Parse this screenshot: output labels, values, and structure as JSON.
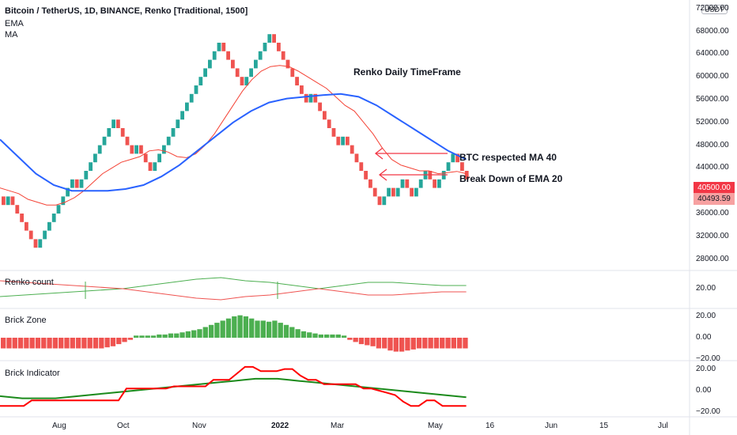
{
  "header": {
    "symbol_line": "Bitcoin / TetherUS, 1D, BINANCE, Renko [Traditional, 1500]",
    "legend": [
      "EMA",
      "MA"
    ]
  },
  "annotations": {
    "timeframe": "Renko Daily TimeFrame",
    "arrow1": "BTC respected MA 40",
    "arrow2": "Break Down of EMA 20"
  },
  "price_axis": {
    "currency": "USDT",
    "ticks": [
      "72000.00",
      "68000.00",
      "64000.00",
      "60000.00",
      "56000.00",
      "52000.00",
      "48000.00",
      "44000.00",
      "36000.00",
      "32000.00",
      "28000.00"
    ],
    "last_price": "40500.00",
    "ema_value": "40493.59"
  },
  "time_axis": [
    "Aug",
    "Oct",
    "Nov",
    "2022",
    "Mar",
    "May",
    "16",
    "Jun",
    "15",
    "Jul"
  ],
  "panes": {
    "renko_count": {
      "title": "Renko count",
      "ticks": [
        "20.00"
      ]
    },
    "brick_zone": {
      "title": "Brick Zone",
      "ticks": [
        "20.00",
        "0.00",
        "−20.00"
      ]
    },
    "brick_indicator": {
      "title": "Brick Indicator",
      "ticks": [
        "20.00",
        "0.00",
        "−20.00"
      ]
    }
  },
  "colors": {
    "up": "#26a69a",
    "up_green": "#4caf50",
    "down": "#ef5350",
    "ema": "#f44336",
    "ma": "#2962ff",
    "indicator_green": "#1b8a1b",
    "indicator_red": "#ff0000"
  },
  "chart_data": {
    "type": "renko",
    "brick_size": 1500,
    "price_range": [
      26000,
      73500
    ],
    "bricks": [
      {
        "open": 39000,
        "close": 37500
      },
      {
        "open": 37500,
        "close": 39000
      },
      {
        "open": 39000,
        "close": 37500
      },
      {
        "open": 37500,
        "close": 36000
      },
      {
        "open": 36000,
        "close": 34500
      },
      {
        "open": 34500,
        "close": 33000
      },
      {
        "open": 33000,
        "close": 31500
      },
      {
        "open": 31500,
        "close": 30000
      },
      {
        "open": 30000,
        "close": 31500
      },
      {
        "open": 31500,
        "close": 33000
      },
      {
        "open": 33000,
        "close": 34500
      },
      {
        "open": 34500,
        "close": 36000
      },
      {
        "open": 36000,
        "close": 37500
      },
      {
        "open": 37500,
        "close": 39000
      },
      {
        "open": 39000,
        "close": 40500
      },
      {
        "open": 40500,
        "close": 42000
      },
      {
        "open": 42000,
        "close": 40500
      },
      {
        "open": 40500,
        "close": 42000
      },
      {
        "open": 42000,
        "close": 43500
      },
      {
        "open": 43500,
        "close": 45000
      },
      {
        "open": 45000,
        "close": 46500
      },
      {
        "open": 46500,
        "close": 48000
      },
      {
        "open": 48000,
        "close": 49500
      },
      {
        "open": 49500,
        "close": 51000
      },
      {
        "open": 51000,
        "close": 52500
      },
      {
        "open": 52500,
        "close": 51000
      },
      {
        "open": 51000,
        "close": 49500
      },
      {
        "open": 49500,
        "close": 48000
      },
      {
        "open": 48000,
        "close": 46500
      },
      {
        "open": 46500,
        "close": 48000
      },
      {
        "open": 48000,
        "close": 46500
      },
      {
        "open": 46500,
        "close": 45000
      },
      {
        "open": 45000,
        "close": 43500
      },
      {
        "open": 43500,
        "close": 45000
      },
      {
        "open": 45000,
        "close": 46500
      },
      {
        "open": 46500,
        "close": 48000
      },
      {
        "open": 48000,
        "close": 49500
      },
      {
        "open": 49500,
        "close": 51000
      },
      {
        "open": 51000,
        "close": 52500
      },
      {
        "open": 52500,
        "close": 54000
      },
      {
        "open": 54000,
        "close": 55500
      },
      {
        "open": 55500,
        "close": 57000
      },
      {
        "open": 57000,
        "close": 58500
      },
      {
        "open": 58500,
        "close": 60000
      },
      {
        "open": 60000,
        "close": 61500
      },
      {
        "open": 61500,
        "close": 63000
      },
      {
        "open": 63000,
        "close": 64500
      },
      {
        "open": 64500,
        "close": 66000
      },
      {
        "open": 66000,
        "close": 64500
      },
      {
        "open": 64500,
        "close": 63000
      },
      {
        "open": 63000,
        "close": 61500
      },
      {
        "open": 61500,
        "close": 60000
      },
      {
        "open": 60000,
        "close": 58500
      },
      {
        "open": 58500,
        "close": 60000
      },
      {
        "open": 60000,
        "close": 61500
      },
      {
        "open": 61500,
        "close": 63000
      },
      {
        "open": 63000,
        "close": 64500
      },
      {
        "open": 64500,
        "close": 66000
      },
      {
        "open": 66000,
        "close": 67500
      },
      {
        "open": 67500,
        "close": 66000
      },
      {
        "open": 66000,
        "close": 64500
      },
      {
        "open": 64500,
        "close": 63000
      },
      {
        "open": 63000,
        "close": 61500
      },
      {
        "open": 61500,
        "close": 60000
      },
      {
        "open": 60000,
        "close": 58500
      },
      {
        "open": 58500,
        "close": 57000
      },
      {
        "open": 57000,
        "close": 55500
      },
      {
        "open": 55500,
        "close": 57000
      },
      {
        "open": 57000,
        "close": 55500
      },
      {
        "open": 55500,
        "close": 54000
      },
      {
        "open": 54000,
        "close": 52500
      },
      {
        "open": 52500,
        "close": 51000
      },
      {
        "open": 51000,
        "close": 49500
      },
      {
        "open": 49500,
        "close": 48000
      },
      {
        "open": 48000,
        "close": 49500
      },
      {
        "open": 49500,
        "close": 48000
      },
      {
        "open": 48000,
        "close": 46500
      },
      {
        "open": 46500,
        "close": 45000
      },
      {
        "open": 45000,
        "close": 43500
      },
      {
        "open": 43500,
        "close": 42000
      },
      {
        "open": 42000,
        "close": 40500
      },
      {
        "open": 40500,
        "close": 39000
      },
      {
        "open": 39000,
        "close": 37500
      },
      {
        "open": 37500,
        "close": 39000
      },
      {
        "open": 39000,
        "close": 40500
      },
      {
        "open": 40500,
        "close": 39000
      },
      {
        "open": 39000,
        "close": 40500
      },
      {
        "open": 40500,
        "close": 42000
      },
      {
        "open": 42000,
        "close": 40500
      },
      {
        "open": 40500,
        "close": 39000
      },
      {
        "open": 39000,
        "close": 40500
      },
      {
        "open": 40500,
        "close": 42000
      },
      {
        "open": 42000,
        "close": 43500
      },
      {
        "open": 43500,
        "close": 42000
      },
      {
        "open": 42000,
        "close": 40500
      },
      {
        "open": 40500,
        "close": 42000
      },
      {
        "open": 42000,
        "close": 43500
      },
      {
        "open": 43500,
        "close": 45000
      },
      {
        "open": 45000,
        "close": 46500
      },
      {
        "open": 46500,
        "close": 45000
      },
      {
        "open": 45000,
        "close": 43500
      },
      {
        "open": 43500,
        "close": 42000
      }
    ],
    "ema": [
      40500,
      40000,
      39500,
      38500,
      38000,
      37500,
      37500,
      38000,
      38800,
      40000,
      41500,
      43000,
      44000,
      45000,
      45500,
      46000,
      47000,
      47200,
      46800,
      46000,
      45800,
      46500,
      48000,
      50000,
      52500,
      55000,
      57500,
      59500,
      61000,
      61800,
      62000,
      61800,
      61000,
      60000,
      59000,
      58000,
      56500,
      55000,
      54000,
      52000,
      50000,
      47500,
      45500,
      44500,
      44000,
      43500,
      43500,
      43000,
      43200,
      43400,
      43000
    ],
    "ma": [
      49000,
      46000,
      43000,
      41000,
      40000,
      40000,
      40000,
      40300,
      41000,
      42500,
      44500,
      47000,
      49500,
      52000,
      54000,
      55500,
      56200,
      56500,
      56800,
      57000,
      56500,
      55000,
      53000,
      51000,
      49000,
      47000,
      45500
    ],
    "renko_count": {
      "line_a": [
        15,
        16,
        17,
        18,
        19,
        20,
        22,
        24,
        26,
        27,
        25,
        24,
        22,
        20,
        22,
        24,
        24,
        23,
        22,
        22
      ],
      "line_b": [
        25,
        24,
        23,
        22,
        21,
        20,
        18,
        16,
        14,
        13,
        15,
        16,
        18,
        20,
        18,
        16,
        16,
        17,
        18,
        18
      ]
    },
    "brick_zone": [
      -10,
      -10,
      -10,
      -10,
      -10,
      -10,
      -10,
      -10,
      -10,
      -10,
      -10,
      -10,
      -10,
      -10,
      -10,
      -10,
      -10,
      -10,
      -9,
      -8,
      -6,
      -4,
      -2,
      2,
      2,
      2,
      2,
      3,
      3,
      4,
      4,
      5,
      6,
      7,
      8,
      10,
      12,
      14,
      16,
      18,
      20,
      21,
      20,
      18,
      16,
      16,
      15,
      16,
      14,
      12,
      10,
      8,
      6,
      5,
      4,
      3,
      3,
      3,
      3,
      2,
      -2,
      -4,
      -6,
      -7,
      -8,
      -10,
      -10,
      -12,
      -13,
      -13,
      -12,
      -11,
      -10,
      -10,
      -10,
      -10,
      -10,
      -10,
      -10,
      -10,
      -10
    ],
    "brick_indicator": {
      "green": [
        -5,
        -6,
        -7,
        -7,
        -7,
        -7,
        -6,
        -5,
        -4,
        -3,
        -2,
        -1,
        0,
        1,
        2,
        3,
        4,
        5,
        6,
        7,
        8,
        9,
        10,
        11,
        11,
        11,
        10,
        9,
        8,
        7,
        6,
        5,
        4,
        3,
        2,
        1,
        0,
        -1,
        -2,
        -3,
        -4,
        -5,
        -6
      ],
      "red": [
        -14,
        -14,
        -14,
        -14,
        -9,
        -9,
        -9,
        -9,
        -9,
        -9,
        -9,
        -9,
        -9,
        -9,
        -9,
        -9,
        2,
        2,
        2,
        2,
        2,
        2,
        4,
        4,
        4,
        4,
        4,
        10,
        10,
        10,
        16,
        22,
        22,
        18,
        18,
        18,
        20,
        20,
        14,
        10,
        10,
        6,
        6,
        6,
        6,
        6,
        2,
        2,
        0,
        -2,
        -4,
        -10,
        -14,
        -14,
        -9,
        -9,
        -14,
        -14,
        -14,
        -14
      ]
    }
  }
}
